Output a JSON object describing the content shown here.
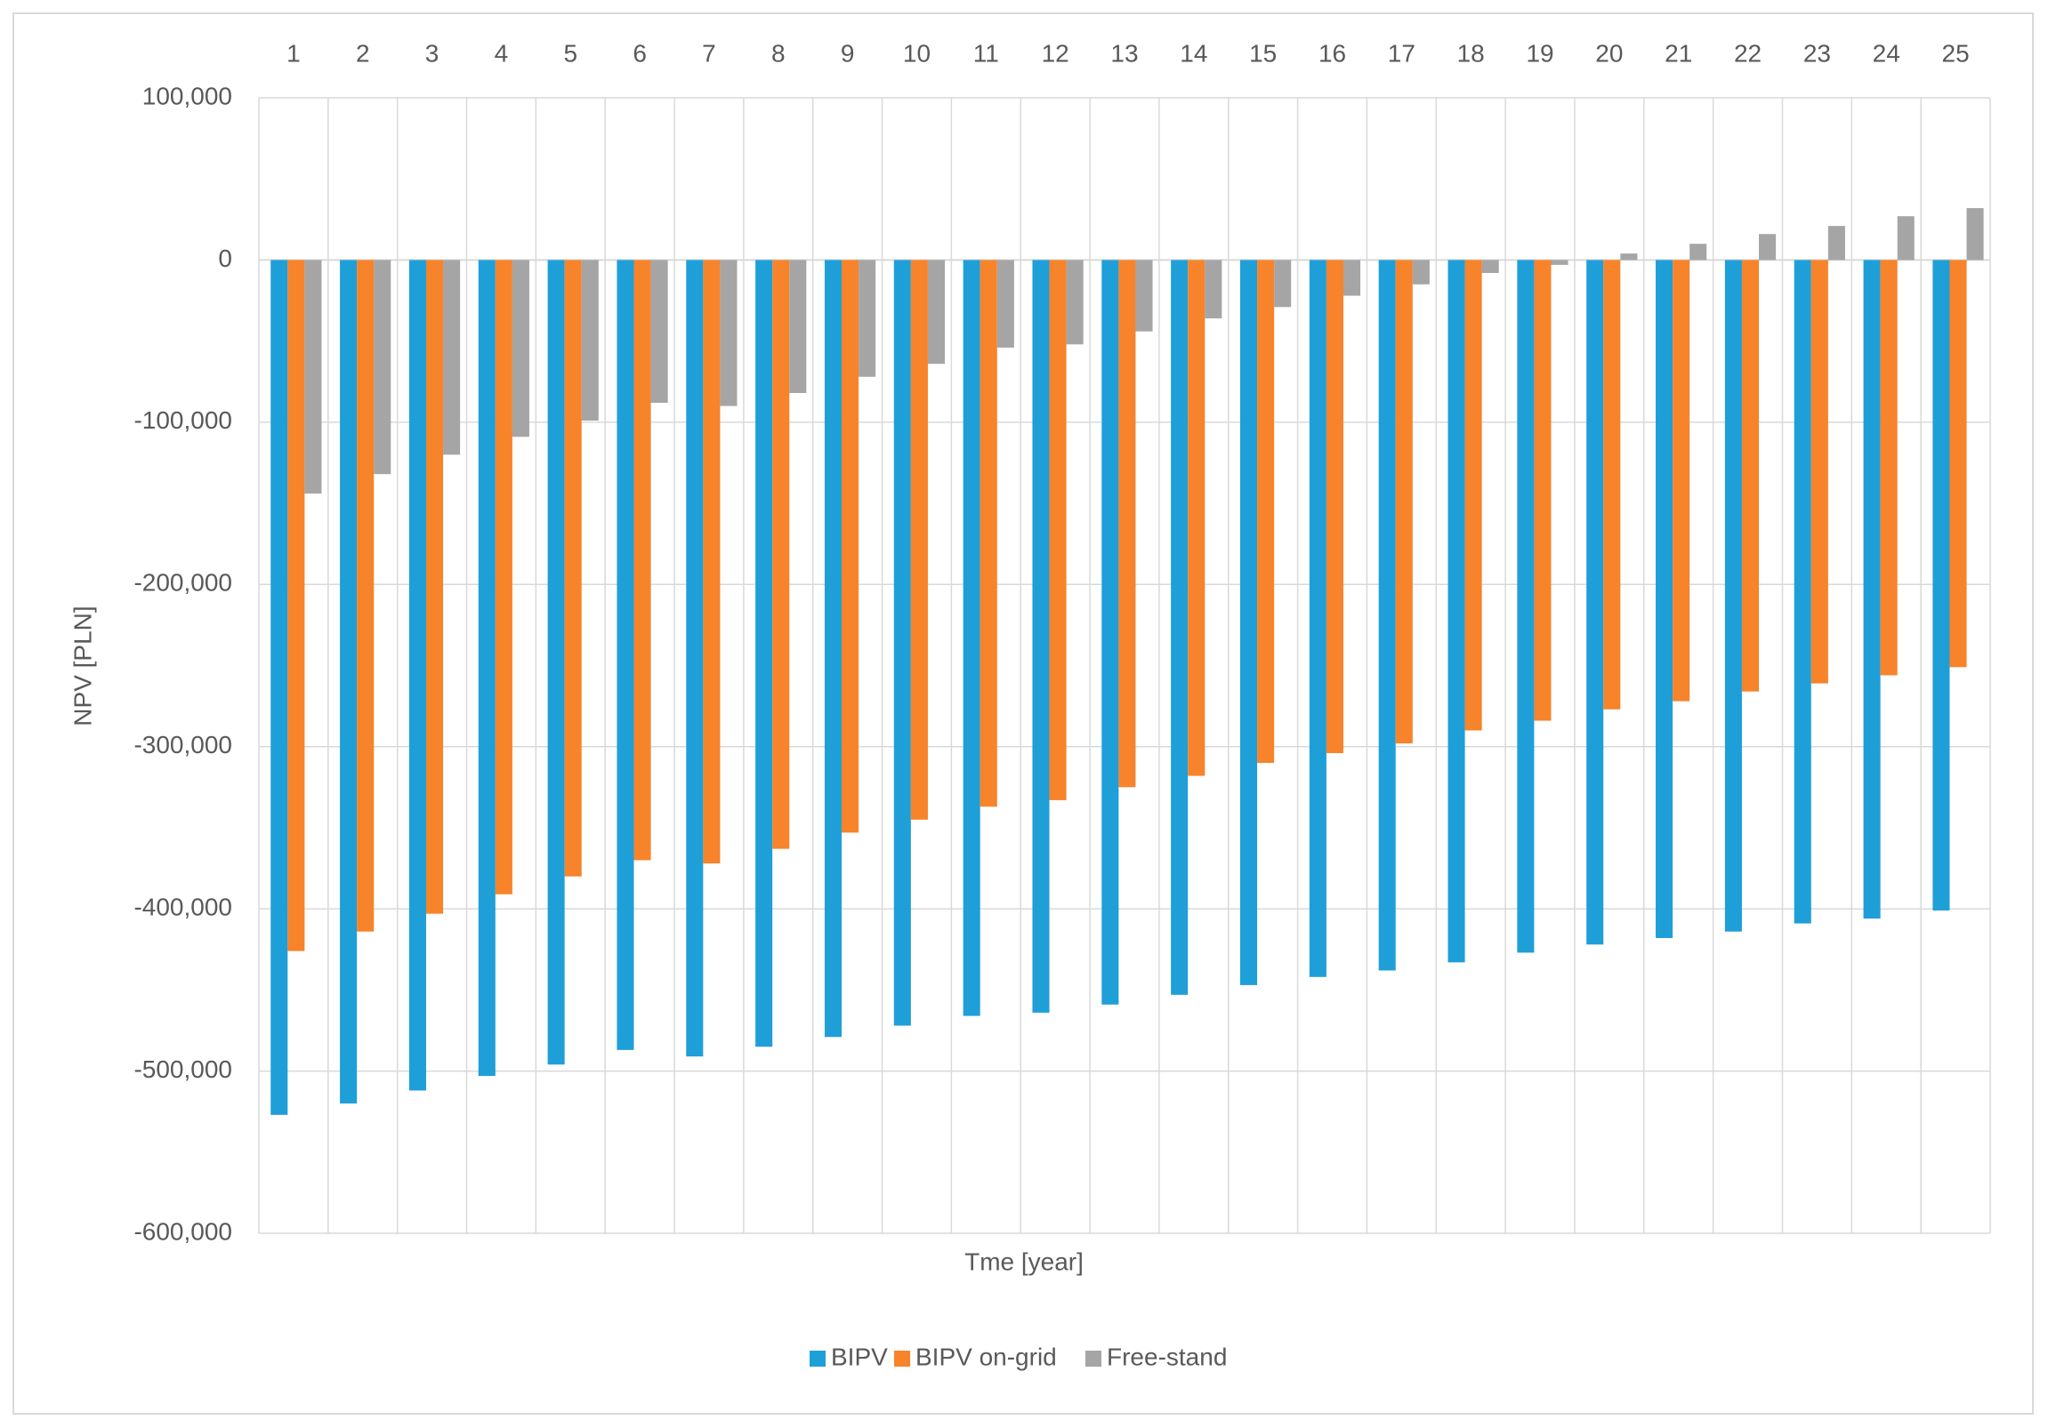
{
  "chart_data": {
    "type": "bar",
    "x_label": "Tme  [year]",
    "y_label": "NPV [PLN]",
    "categories": [
      "1",
      "2",
      "3",
      "4",
      "5",
      "6",
      "7",
      "8",
      "9",
      "10",
      "11",
      "12",
      "13",
      "14",
      "15",
      "16",
      "17",
      "18",
      "19",
      "20",
      "21",
      "22",
      "23",
      "24",
      "25"
    ],
    "series": [
      {
        "name": "BIPV",
        "color": "#1f9fd8",
        "values": [
          -527000,
          -520000,
          -512000,
          -503000,
          -496000,
          -487000,
          -491000,
          -485000,
          -479000,
          -472000,
          -466000,
          -464000,
          -459000,
          -453000,
          -447000,
          -442000,
          -438000,
          -433000,
          -427000,
          -422000,
          -418000,
          -414000,
          -409000,
          -406000,
          -401000
        ]
      },
      {
        "name": "BIPV on-grid",
        "color": "#f7832a",
        "values": [
          -426000,
          -414000,
          -403000,
          -391000,
          -380000,
          -370000,
          -372000,
          -363000,
          -353000,
          -345000,
          -337000,
          -333000,
          -325000,
          -318000,
          -310000,
          -304000,
          -298000,
          -290000,
          -284000,
          -277000,
          -272000,
          -266000,
          -261000,
          -256000,
          -251000
        ]
      },
      {
        "name": "Free-stand",
        "color": "#a5a5a5",
        "values": [
          -144000,
          -132000,
          -120000,
          -109000,
          -99000,
          -88000,
          -90000,
          -82000,
          -72000,
          -64000,
          -54000,
          -52000,
          -44000,
          -36000,
          -29000,
          -22000,
          -15000,
          -8000,
          -3000,
          4000,
          10000,
          16000,
          21000,
          27000,
          32000
        ]
      }
    ],
    "ylim": [
      -600000,
      100000
    ],
    "yticks": [
      {
        "value": -600000,
        "label": "-600,000"
      },
      {
        "value": -500000,
        "label": "-500,000"
      },
      {
        "value": -400000,
        "label": "-400,000"
      },
      {
        "value": -300000,
        "label": "-300,000"
      },
      {
        "value": -200000,
        "label": "-200,000"
      },
      {
        "value": -100000,
        "label": "-100,000"
      },
      0,
      {
        "value": 100000,
        "label": "100,000"
      }
    ],
    "grid": true,
    "legend": "bottom"
  }
}
